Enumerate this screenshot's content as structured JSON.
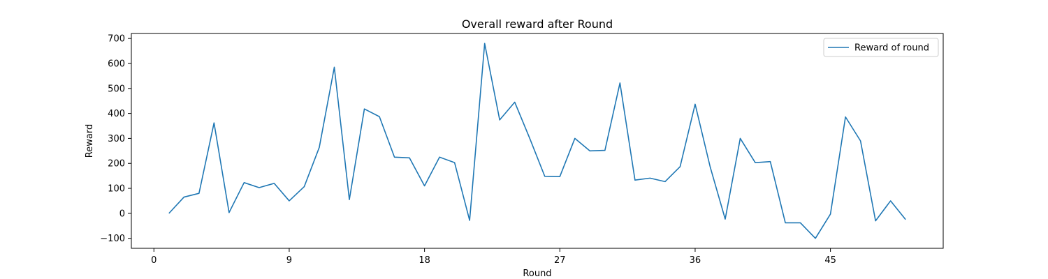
{
  "chart_data": {
    "type": "line",
    "title": "Overall reward after Round",
    "xlabel": "Round",
    "ylabel": "Reward",
    "xlim": [
      -1.5,
      52.5
    ],
    "ylim": [
      -140,
      720
    ],
    "xticks": [
      0,
      9,
      18,
      27,
      36,
      45
    ],
    "yticks": [
      -100,
      0,
      100,
      200,
      300,
      400,
      500,
      600,
      700
    ],
    "grid": false,
    "legend_position": "top-right",
    "colors": {
      "series": "#1f77b4"
    },
    "series": [
      {
        "name": "Reward of round",
        "x": [
          1,
          2,
          3,
          4,
          5,
          6,
          7,
          8,
          9,
          10,
          11,
          12,
          13,
          14,
          15,
          16,
          17,
          18,
          19,
          20,
          21,
          22,
          23,
          24,
          25,
          26,
          27,
          28,
          29,
          30,
          31,
          32,
          33,
          34,
          35,
          36,
          37,
          38,
          39,
          40,
          41,
          42,
          43,
          44,
          45,
          46,
          47,
          48,
          49,
          50
        ],
        "values": [
          0,
          65,
          80,
          362,
          3,
          123,
          103,
          120,
          50,
          107,
          264,
          585,
          55,
          418,
          387,
          225,
          222,
          110,
          225,
          203,
          -28,
          680,
          374,
          445,
          300,
          148,
          147,
          300,
          250,
          252,
          522,
          133,
          141,
          127,
          187,
          437,
          186,
          -23,
          300,
          203,
          207,
          -38,
          -38,
          -100,
          -3,
          386,
          290,
          -30,
          50,
          -25
        ]
      }
    ]
  }
}
